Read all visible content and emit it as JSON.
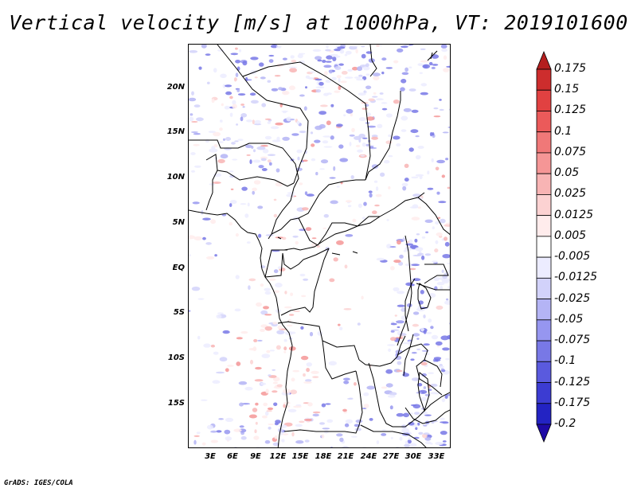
{
  "title": "Vertical velocity [m/s] at 1000hPa, VT: 2019101600",
  "lat_ticks": [
    "20N",
    "15N",
    "10N",
    "5N",
    "EQ",
    "5S",
    "10S",
    "15S"
  ],
  "lon_ticks": [
    "3E",
    "6E",
    "9E",
    "12E",
    "15E",
    "18E",
    "21E",
    "24E",
    "27E",
    "30E",
    "33E"
  ],
  "colorbar": {
    "levels": [
      "0.175",
      "0.15",
      "0.125",
      "0.1",
      "0.075",
      "0.05",
      "0.025",
      "0.0125",
      "0.005",
      "-0.005",
      "-0.0125",
      "-0.025",
      "-0.05",
      "-0.075",
      "-0.1",
      "-0.125",
      "-0.175",
      "-0.2"
    ],
    "colors": [
      "#b41e1e",
      "#cd2d2d",
      "#e14141",
      "#eb5a5a",
      "#f07878",
      "#f59696",
      "#f8b4b4",
      "#fcd2d2",
      "#ffecec",
      "#ffffff",
      "#ececff",
      "#d2d2fa",
      "#b4b4f5",
      "#9696f0",
      "#7878e6",
      "#5a5ade",
      "#3c3cd2",
      "#2323c3",
      "#1e0aa5"
    ]
  },
  "footer": "GrADS: IGES/COLA"
}
